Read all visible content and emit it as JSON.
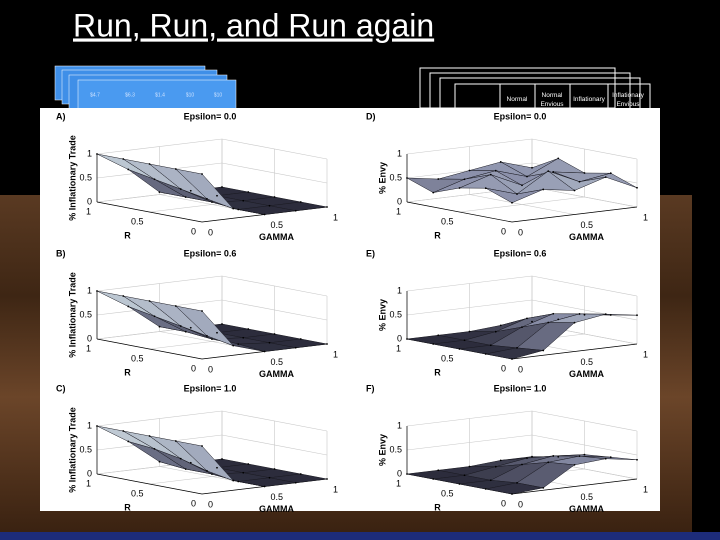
{
  "slide": {
    "title": "Run, Run, and Run again",
    "left_card_cells": [
      "$4.7",
      "$6.3",
      "$1.4",
      "$10",
      "$10"
    ],
    "right_table_headers": [
      "Normal",
      "Normal Envious",
      "Inflationary",
      "Inflationary Envious"
    ]
  },
  "chart_data": [
    {
      "type": "surface",
      "panel": "A)",
      "title": "Epsilon= 0.0",
      "xlabel": "GAMMA",
      "ylabel": "R",
      "zlabel": "% Inflationary Trade",
      "x": [
        0,
        0.25,
        0.5,
        0.75,
        1
      ],
      "y": [
        0,
        0.25,
        0.5,
        0.75,
        1
      ],
      "z": [
        [
          1,
          0.2,
          0,
          0,
          0
        ],
        [
          1,
          0.3,
          0,
          0,
          0
        ],
        [
          1,
          0.4,
          0.05,
          0,
          0
        ],
        [
          1,
          0.5,
          0.05,
          0,
          0
        ],
        [
          1,
          0.6,
          0.05,
          0,
          0
        ]
      ],
      "xlim": [
        0,
        1
      ],
      "ylim": [
        0,
        1
      ],
      "zlim": [
        0,
        1
      ],
      "xticks": [
        0,
        0.5,
        1
      ],
      "yticks": [
        0,
        0.5,
        1
      ],
      "zticks": [
        0,
        0.5,
        1
      ],
      "grid": true,
      "colormap": [
        "#2c2c3c",
        "#8c91ab",
        "#e4f3f1"
      ]
    },
    {
      "type": "surface",
      "panel": "B)",
      "title": "Epsilon= 0.6",
      "xlabel": "GAMMA",
      "ylabel": "R",
      "zlabel": "% Inflationary Trade",
      "x": [
        0,
        0.25,
        0.5,
        0.75,
        1
      ],
      "y": [
        0,
        0.25,
        0.5,
        0.75,
        1
      ],
      "z": [
        [
          1,
          0.2,
          0,
          0,
          0
        ],
        [
          1,
          0.3,
          0.05,
          0,
          0
        ],
        [
          1,
          0.4,
          0.05,
          0,
          0
        ],
        [
          1,
          0.5,
          0.1,
          0,
          0
        ],
        [
          1,
          0.6,
          0.1,
          0,
          0
        ]
      ],
      "xlim": [
        0,
        1
      ],
      "ylim": [
        0,
        1
      ],
      "zlim": [
        0,
        1
      ],
      "xticks": [
        0,
        0.5,
        1
      ],
      "yticks": [
        0,
        0.5,
        1
      ],
      "zticks": [
        0,
        0.5,
        1
      ],
      "grid": true,
      "colormap": [
        "#2c2c3c",
        "#8c91ab",
        "#e4f3f1"
      ]
    },
    {
      "type": "surface",
      "panel": "C)",
      "title": "Epsilon= 1.0",
      "xlabel": "GAMMA",
      "ylabel": "R",
      "zlabel": "% Inflationary Trade",
      "x": [
        0,
        0.25,
        0.5,
        0.75,
        1
      ],
      "y": [
        0,
        0.25,
        0.5,
        0.75,
        1
      ],
      "z": [
        [
          1,
          0.2,
          0,
          0,
          0
        ],
        [
          1,
          0.3,
          0,
          0,
          0
        ],
        [
          1,
          0.45,
          0.05,
          0,
          0
        ],
        [
          1,
          0.55,
          0.05,
          0,
          0
        ],
        [
          1,
          0.6,
          0.1,
          0,
          0
        ]
      ],
      "xlim": [
        0,
        1
      ],
      "ylim": [
        0,
        1
      ],
      "zlim": [
        0,
        1
      ],
      "xticks": [
        0,
        0.5,
        1
      ],
      "yticks": [
        0,
        0.5,
        1
      ],
      "zticks": [
        0,
        0.5,
        1
      ],
      "grid": true,
      "colormap": [
        "#2c2c3c",
        "#8c91ab",
        "#e4f3f1"
      ]
    },
    {
      "type": "surface",
      "panel": "D)",
      "title": "Epsilon= 0.0",
      "xlabel": "GAMMA",
      "ylabel": "R",
      "zlabel": "% Envy",
      "x": [
        0,
        0.25,
        0.5,
        0.75,
        1
      ],
      "y": [
        0,
        0.25,
        0.5,
        0.75,
        1
      ],
      "z": [
        [
          0.4,
          0.6,
          0.5,
          0.7,
          0.4
        ],
        [
          0.6,
          0.4,
          0.8,
          0.5,
          0.6
        ],
        [
          0.5,
          0.7,
          0.4,
          0.6,
          0.5
        ],
        [
          0.3,
          0.5,
          0.6,
          0.4,
          0.7
        ],
        [
          0.5,
          0.4,
          0.5,
          0.6,
          0.4
        ]
      ],
      "xlim": [
        0,
        1
      ],
      "ylim": [
        0,
        1
      ],
      "zlim": [
        0,
        1
      ],
      "xticks": [
        0,
        0.5,
        1
      ],
      "yticks": [
        0,
        0.5,
        1
      ],
      "zticks": [
        0,
        0.5,
        1
      ],
      "grid": true,
      "colormap": [
        "#2c2c3c",
        "#8c91ab",
        "#e4f3f1"
      ]
    },
    {
      "type": "surface",
      "panel": "E)",
      "title": "Epsilon= 0.6",
      "xlabel": "GAMMA",
      "ylabel": "R",
      "zlabel": "% Envy",
      "x": [
        0,
        0.25,
        0.5,
        0.75,
        1
      ],
      "y": [
        0,
        0.25,
        0.5,
        0.75,
        1
      ],
      "z": [
        [
          0,
          0.1,
          0.6,
          0.7,
          0.6
        ],
        [
          0,
          0.05,
          0.5,
          0.6,
          0.5
        ],
        [
          0,
          0,
          0.3,
          0.5,
          0.4
        ],
        [
          0,
          0,
          0.1,
          0.3,
          0.2
        ],
        [
          0,
          0,
          0,
          0.05,
          0.05
        ]
      ],
      "xlim": [
        0,
        1
      ],
      "ylim": [
        0,
        1
      ],
      "zlim": [
        0,
        1
      ],
      "xticks": [
        0,
        0.5,
        1
      ],
      "yticks": [
        0,
        0.5,
        1
      ],
      "zticks": [
        0,
        0.5,
        1
      ],
      "grid": true,
      "colormap": [
        "#2c2c3c",
        "#8c91ab",
        "#e4f3f1"
      ]
    },
    {
      "type": "surface",
      "panel": "F)",
      "title": "Epsilon= 1.0",
      "xlabel": "GAMMA",
      "ylabel": "R",
      "zlabel": "% Envy",
      "x": [
        0,
        0.25,
        0.5,
        0.75,
        1
      ],
      "y": [
        0,
        0.25,
        0.5,
        0.75,
        1
      ],
      "z": [
        [
          0,
          0.05,
          0.45,
          0.5,
          0.4
        ],
        [
          0,
          0.05,
          0.4,
          0.45,
          0.35
        ],
        [
          0,
          0,
          0.25,
          0.35,
          0.3
        ],
        [
          0,
          0,
          0.1,
          0.2,
          0.15
        ],
        [
          0,
          0,
          0,
          0.05,
          0.05
        ]
      ],
      "xlim": [
        0,
        1
      ],
      "ylim": [
        0,
        1
      ],
      "zlim": [
        0,
        1
      ],
      "xticks": [
        0,
        0.5,
        1
      ],
      "yticks": [
        0,
        0.5,
        1
      ],
      "zticks": [
        0,
        0.5,
        1
      ],
      "grid": true,
      "colormap": [
        "#2c2c3c",
        "#8c91ab",
        "#e4f3f1"
      ]
    }
  ]
}
